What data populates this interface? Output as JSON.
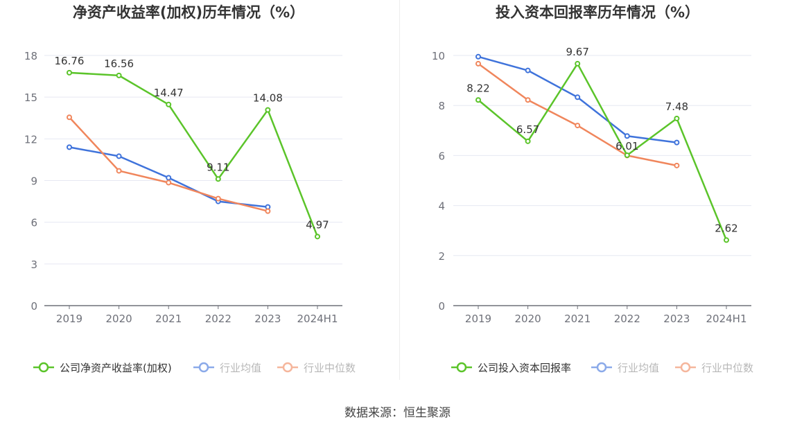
{
  "source": "数据来源：恒生聚源",
  "colors": {
    "company": "#5bc42a",
    "industry_avg": "#3f73db",
    "industry_median": "#f0865c"
  },
  "chart_data": [
    {
      "type": "line",
      "title": "净资产收益率(加权)历年情况（%）",
      "categories": [
        "2019",
        "2020",
        "2021",
        "2022",
        "2023",
        "2024H1"
      ],
      "ylim": [
        0,
        18
      ],
      "yticks": [
        0,
        3,
        6,
        9,
        12,
        15,
        18
      ],
      "grid": true,
      "legend_position": "bottom",
      "series": [
        {
          "name": "公司净资产收益率(加权)",
          "key": "company",
          "values": [
            16.76,
            16.56,
            14.47,
            9.11,
            14.08,
            4.97
          ],
          "labels": [
            "16.76",
            "16.56",
            "14.47",
            "9.11",
            "14.08",
            "4.97"
          ]
        },
        {
          "name": "行业均值",
          "key": "industry_avg",
          "values": [
            11.4,
            10.75,
            9.2,
            7.5,
            7.1,
            null
          ]
        },
        {
          "name": "行业中位数",
          "key": "industry_median",
          "values": [
            13.55,
            9.7,
            8.85,
            7.7,
            6.8,
            null
          ]
        }
      ]
    },
    {
      "type": "line",
      "title": "投入资本回报率历年情况（%）",
      "categories": [
        "2019",
        "2020",
        "2021",
        "2022",
        "2023",
        "2024H1"
      ],
      "ylim": [
        0,
        10
      ],
      "yticks": [
        0,
        2,
        4,
        6,
        8,
        10
      ],
      "grid": true,
      "legend_position": "bottom",
      "series": [
        {
          "name": "公司投入资本回报率",
          "key": "company",
          "values": [
            8.22,
            6.57,
            9.67,
            6.01,
            7.48,
            2.62
          ],
          "labels": [
            "8.22",
            "6.57",
            "9.67",
            "6.01",
            "7.48",
            "2.62"
          ]
        },
        {
          "name": "行业均值",
          "key": "industry_avg",
          "values": [
            9.95,
            9.4,
            8.33,
            6.78,
            6.52,
            null
          ]
        },
        {
          "name": "行业中位数",
          "key": "industry_median",
          "values": [
            9.67,
            8.22,
            7.2,
            6.0,
            5.6,
            null
          ]
        }
      ]
    }
  ]
}
